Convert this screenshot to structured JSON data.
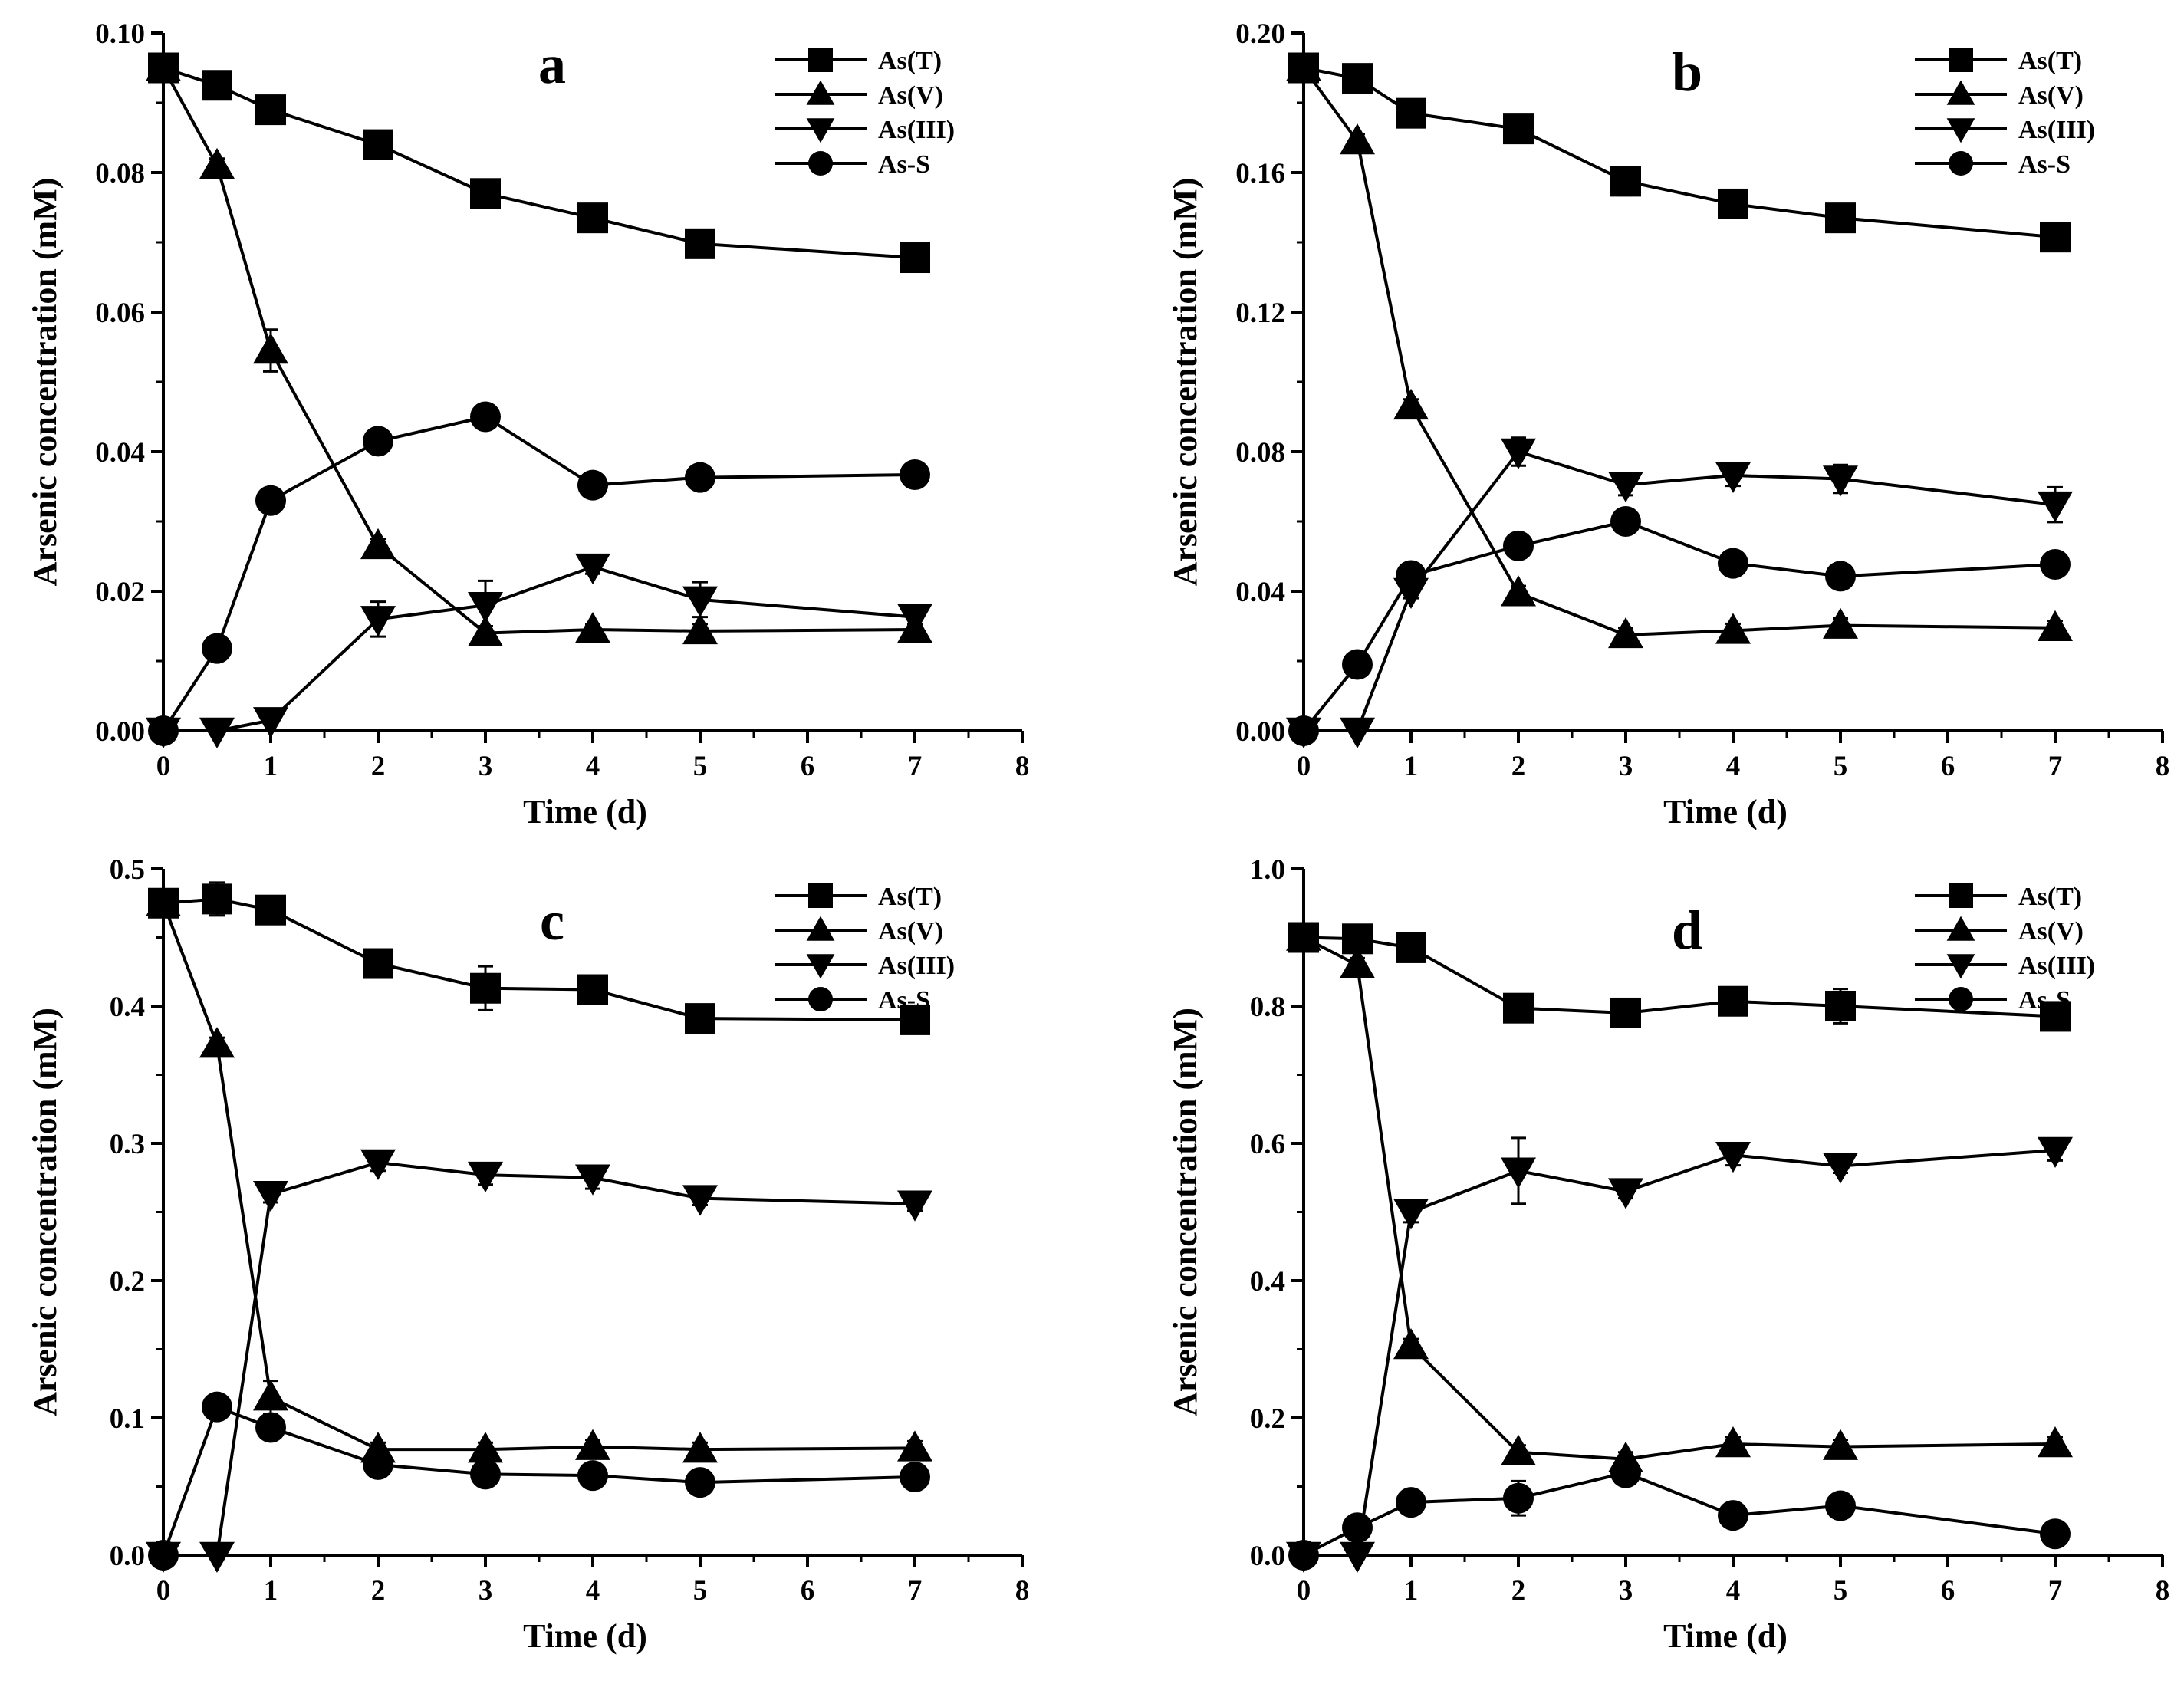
{
  "chart_data": [
    {
      "type": "line",
      "panel_label": "a",
      "xlabel": "Time (d)",
      "ylabel": "Arsenic concentration (mM)",
      "xlim": [
        0,
        8
      ],
      "ylim": [
        0,
        0.1
      ],
      "x_ticks": [
        "0",
        "1",
        "2",
        "3",
        "4",
        "5",
        "6",
        "7",
        "8"
      ],
      "y_ticks": [
        "0.00",
        "0.02",
        "0.04",
        "0.06",
        "0.08",
        "0.10"
      ],
      "legend": "top-right",
      "x": [
        0,
        0.5,
        1,
        2,
        3,
        4,
        5,
        7
      ],
      "series": [
        {
          "name": "As(T)",
          "marker": "square",
          "values": [
            0.095,
            0.0925,
            0.089,
            0.084,
            0.077,
            0.0735,
            0.0698,
            0.0678
          ],
          "errors": [
            0.001,
            0.0015,
            0.001,
            0.0012,
            0.001,
            0.0008,
            0.0018,
            0.001
          ]
        },
        {
          "name": "As(V)",
          "marker": "triangle-up",
          "values": [
            0.095,
            0.081,
            0.0545,
            0.0265,
            0.014,
            0.0145,
            0.0143,
            0.0145
          ],
          "errors": [
            0.001,
            0.001,
            0.003,
            0.001,
            0.001,
            0.0008,
            0.001,
            0.0008
          ]
        },
        {
          "name": "As(III)",
          "marker": "triangle-down",
          "values": [
            0,
            0,
            0.0015,
            0.016,
            0.018,
            0.0235,
            0.0188,
            0.0163
          ],
          "errors": [
            0,
            0,
            0.0005,
            0.0025,
            0.0035,
            0.001,
            0.0025,
            0.0015
          ]
        },
        {
          "name": "As-S",
          "marker": "circle",
          "values": [
            0,
            0.0118,
            0.033,
            0.0415,
            0.045,
            0.0352,
            0.0363,
            0.0367
          ],
          "errors": [
            0,
            0.0008,
            0.001,
            0.001,
            0.0015,
            0.001,
            0.001,
            0.0008
          ]
        }
      ]
    },
    {
      "type": "line",
      "panel_label": "b",
      "xlabel": "Time (d)",
      "ylabel": "Arsenic concentration (mM)",
      "xlim": [
        0,
        8
      ],
      "ylim": [
        0,
        0.2
      ],
      "x_ticks": [
        "0",
        "1",
        "2",
        "3",
        "4",
        "5",
        "6",
        "7",
        "8"
      ],
      "y_ticks": [
        "0.00",
        "0.04",
        "0.08",
        "0.12",
        "0.16",
        "0.20"
      ],
      "legend": "top-right",
      "x": [
        0,
        0.5,
        1,
        2,
        3,
        4,
        5,
        7
      ],
      "series": [
        {
          "name": "As(T)",
          "marker": "square",
          "values": [
            0.19,
            0.187,
            0.177,
            0.1725,
            0.1575,
            0.151,
            0.147,
            0.1415
          ],
          "errors": [
            0.002,
            0.004,
            0.002,
            0.002,
            0.004,
            0.002,
            0.003,
            0.002
          ]
        },
        {
          "name": "As(V)",
          "marker": "triangle-up",
          "values": [
            0.19,
            0.169,
            0.093,
            0.0395,
            0.0275,
            0.0287,
            0.0302,
            0.0295
          ],
          "errors": [
            0.002,
            0.002,
            0.002,
            0.002,
            0.002,
            0.002,
            0.002,
            0.002
          ]
        },
        {
          "name": "As(III)",
          "marker": "triangle-down",
          "values": [
            0,
            0,
            0.04,
            0.08,
            0.0705,
            0.0732,
            0.0722,
            0.0648
          ],
          "errors": [
            0,
            0,
            0.002,
            0.004,
            0.003,
            0.003,
            0.004,
            0.005
          ]
        },
        {
          "name": "As-S",
          "marker": "circle",
          "values": [
            0,
            0.019,
            0.0445,
            0.053,
            0.06,
            0.048,
            0.0443,
            0.0477
          ],
          "errors": [
            0,
            0.002,
            0.002,
            0.002,
            0.002,
            0.002,
            0.002,
            0.002
          ]
        }
      ]
    },
    {
      "type": "line",
      "panel_label": "c",
      "xlabel": "Time (d)",
      "ylabel": "Arsenic concentration (mM)",
      "xlim": [
        0,
        8
      ],
      "ylim": [
        0,
        0.5
      ],
      "x_ticks": [
        "0",
        "1",
        "2",
        "3",
        "4",
        "5",
        "6",
        "7",
        "8"
      ],
      "y_ticks": [
        "0.0",
        "0.1",
        "0.2",
        "0.3",
        "0.4",
        "0.5"
      ],
      "legend": "top-right",
      "x": [
        0,
        0.5,
        1,
        2,
        3,
        4,
        5,
        7
      ],
      "series": [
        {
          "name": "As(T)",
          "marker": "square",
          "values": [
            0.475,
            0.478,
            0.47,
            0.431,
            0.413,
            0.412,
            0.391,
            0.39
          ],
          "errors": [
            0.005,
            0.012,
            0.005,
            0.005,
            0.016,
            0.005,
            0.005,
            0.005
          ]
        },
        {
          "name": "As(V)",
          "marker": "triangle-up",
          "values": [
            0.475,
            0.372,
            0.115,
            0.077,
            0.077,
            0.079,
            0.077,
            0.078
          ],
          "errors": [
            0.005,
            0.005,
            0.012,
            0.005,
            0.005,
            0.005,
            0.005,
            0.005
          ]
        },
        {
          "name": "As(III)",
          "marker": "triangle-down",
          "values": [
            0,
            0,
            0.263,
            0.286,
            0.277,
            0.275,
            0.26,
            0.256
          ],
          "errors": [
            0,
            0,
            0.006,
            0.006,
            0.007,
            0.008,
            0.005,
            0.005
          ]
        },
        {
          "name": "As-S",
          "marker": "circle",
          "values": [
            0,
            0.108,
            0.093,
            0.066,
            0.059,
            0.058,
            0.053,
            0.057
          ],
          "errors": [
            0,
            0.005,
            0.005,
            0.005,
            0.005,
            0.005,
            0.005,
            0.005
          ]
        }
      ]
    },
    {
      "type": "line",
      "panel_label": "d",
      "xlabel": "Time (d)",
      "ylabel": "Arsenic concentration (mM)",
      "xlim": [
        0,
        8
      ],
      "ylim": [
        0,
        1.0
      ],
      "x_ticks": [
        "0",
        "1",
        "2",
        "3",
        "4",
        "5",
        "6",
        "7",
        "8"
      ],
      "y_ticks": [
        "0.0",
        "0.2",
        "0.4",
        "0.6",
        "0.8",
        "1.0"
      ],
      "legend": "top-right",
      "x": [
        0,
        0.5,
        1,
        2,
        3,
        4,
        5,
        7
      ],
      "series": [
        {
          "name": "As(T)",
          "marker": "square",
          "values": [
            0.9,
            0.898,
            0.885,
            0.797,
            0.79,
            0.807,
            0.8,
            0.785
          ],
          "errors": [
            0.01,
            0.01,
            0.015,
            0.015,
            0.01,
            0.01,
            0.025,
            0.015
          ]
        },
        {
          "name": "As(V)",
          "marker": "triangle-up",
          "values": [
            0.9,
            0.86,
            0.305,
            0.15,
            0.14,
            0.162,
            0.158,
            0.162
          ],
          "errors": [
            0.01,
            0.01,
            0.01,
            0.01,
            0.01,
            0.01,
            0.01,
            0.01
          ]
        },
        {
          "name": "As(III)",
          "marker": "triangle-down",
          "values": [
            0,
            0,
            0.5,
            0.56,
            0.53,
            0.583,
            0.567,
            0.59
          ],
          "errors": [
            0,
            0,
            0.015,
            0.048,
            0.01,
            0.015,
            0.01,
            0.015
          ]
        },
        {
          "name": "As-S",
          "marker": "circle",
          "values": [
            0,
            0.04,
            0.077,
            0.083,
            0.12,
            0.058,
            0.072,
            0.031
          ],
          "errors": [
            0,
            0.01,
            0.01,
            0.025,
            0.015,
            0.01,
            0.01,
            0.01
          ]
        }
      ]
    }
  ]
}
